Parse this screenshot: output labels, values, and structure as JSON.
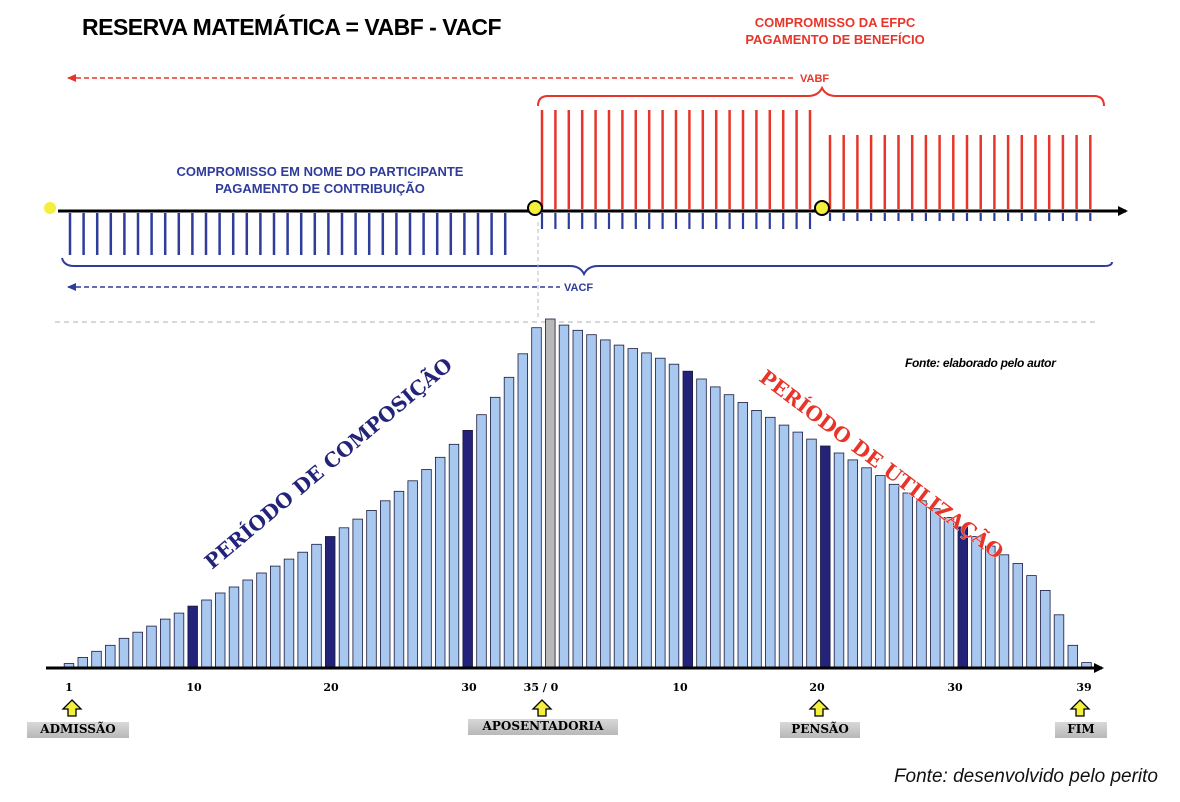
{
  "title": "RESERVA MATEMÁTICA = VABF - VACF",
  "efpc_label": [
    "COMPROMISSO DA EFPC",
    "PAGAMENTO DE BENEFÍCIO"
  ],
  "participant_label": [
    "COMPROMISSO EM NOME DO PARTICIPANTE",
    "PAGAMENTO DE CONTRIBUIÇÃO"
  ],
  "vabf_label": "VABF",
  "vacf_label": "VACF",
  "composition_label": "PERÍODO DE COMPOSIÇÃO",
  "utilization_label": "PERÍODO DE UTILIZAÇÃO",
  "source_note": "Fonte: elaborado pelo autor",
  "footer_source": "Fonte: desenvolvido pelo perito",
  "axis_ticks": [
    "1",
    "10",
    "20",
    "30",
    "35 / 0",
    "10",
    "20",
    "30",
    "39"
  ],
  "milestones": [
    "ADMISSÃO",
    "APOSENTADORIA",
    "PENSÃO",
    "FIM"
  ],
  "colors": {
    "red": "#e8352a",
    "blue": "#2f3c9a",
    "bar_light": "#a8c8f0",
    "bar_dark": "#23237a",
    "bar_peak": "#b8b8b8",
    "marker_yellow": "#f4ee3c"
  },
  "chart_data": {
    "type": "bar",
    "composition_years": 35,
    "utilization_years": 39,
    "composition_values": [
      0.4,
      1.1,
      1.8,
      2.5,
      3.3,
      4.0,
      4.7,
      5.5,
      6.2,
      7.0,
      7.7,
      8.5,
      9.2,
      10.0,
      10.8,
      11.6,
      12.4,
      13.2,
      14.1,
      15.0,
      16.0,
      17.0,
      18.0,
      19.1,
      20.2,
      21.4,
      22.7,
      24.1,
      25.6,
      27.2,
      29.0,
      31.0,
      33.3,
      36.0,
      39.0
    ],
    "utilization_values": [
      40.0,
      39.3,
      38.7,
      38.2,
      37.6,
      37.0,
      36.6,
      36.1,
      35.5,
      34.8,
      34.0,
      33.1,
      32.2,
      31.3,
      30.4,
      29.5,
      28.7,
      27.8,
      27.0,
      26.2,
      25.4,
      24.6,
      23.8,
      22.9,
      22.0,
      21.0,
      20.0,
      19.1,
      18.2,
      17.2,
      16.1,
      15.0,
      13.9,
      12.9,
      11.9,
      10.5,
      8.8,
      6.0,
      2.5,
      0.5
    ],
    "highlighted_composition_years": [
      10,
      20,
      30
    ],
    "highlighted_utilization_years": [
      10,
      20,
      30
    ]
  }
}
